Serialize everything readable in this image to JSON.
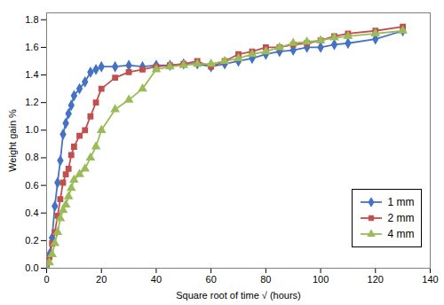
{
  "chart_data": {
    "type": "line",
    "xlabel": "Square root of time √ (hours)",
    "ylabel": "Weight gain %",
    "xlim": [
      0,
      140
    ],
    "ylim": [
      0,
      1.85
    ],
    "xticks": [
      0,
      20,
      40,
      60,
      80,
      100,
      120,
      140
    ],
    "yticks": [
      {
        "value": 0,
        "label": "0.0"
      },
      0.2,
      0.4,
      0.6,
      0.8,
      {
        "value": 1.0,
        "label": "1.0"
      },
      1.2,
      1.4,
      1.6,
      1.8
    ],
    "grid": false,
    "legend": "lower right",
    "x": [
      0,
      1,
      2,
      3,
      4,
      5,
      6,
      7,
      8,
      9,
      10,
      12,
      14,
      16,
      18,
      20,
      25,
      30,
      35,
      40,
      45,
      50,
      55,
      60,
      65,
      70,
      75,
      80,
      85,
      90,
      95,
      100,
      105,
      110,
      120,
      130
    ],
    "series": [
      {
        "name": "1 mm",
        "color": "#4472C4",
        "marker": "diamond",
        "values": [
          0,
          0.1,
          0.22,
          0.45,
          0.62,
          0.78,
          0.97,
          1.05,
          1.12,
          1.18,
          1.25,
          1.3,
          1.35,
          1.42,
          1.44,
          1.46,
          1.46,
          1.47,
          1.46,
          1.47,
          1.47,
          1.48,
          1.48,
          1.46,
          1.48,
          1.5,
          1.52,
          1.55,
          1.57,
          1.58,
          1.6,
          1.6,
          1.62,
          1.63,
          1.66,
          1.72
        ]
      },
      {
        "name": "2 mm",
        "color": "#C0504D",
        "marker": "square",
        "values": [
          0,
          0.08,
          0.18,
          0.26,
          0.38,
          0.5,
          0.62,
          0.68,
          0.72,
          0.82,
          0.88,
          0.96,
          1.0,
          1.1,
          1.2,
          1.3,
          1.38,
          1.42,
          1.44,
          1.46,
          1.47,
          1.48,
          1.5,
          1.46,
          1.5,
          1.55,
          1.57,
          1.6,
          1.6,
          1.62,
          1.63,
          1.65,
          1.68,
          1.7,
          1.72,
          1.75
        ]
      },
      {
        "name": "4 mm",
        "color": "#9BBB59",
        "marker": "triangle",
        "values": [
          0,
          0.04,
          0.1,
          0.18,
          0.26,
          0.36,
          0.42,
          0.46,
          0.52,
          0.58,
          0.64,
          0.68,
          0.72,
          0.8,
          0.88,
          1.0,
          1.15,
          1.22,
          1.3,
          1.44,
          1.46,
          1.47,
          1.48,
          1.48,
          1.5,
          1.52,
          1.55,
          1.57,
          1.6,
          1.63,
          1.64,
          1.65,
          1.67,
          1.68,
          1.7,
          1.72
        ]
      }
    ]
  }
}
